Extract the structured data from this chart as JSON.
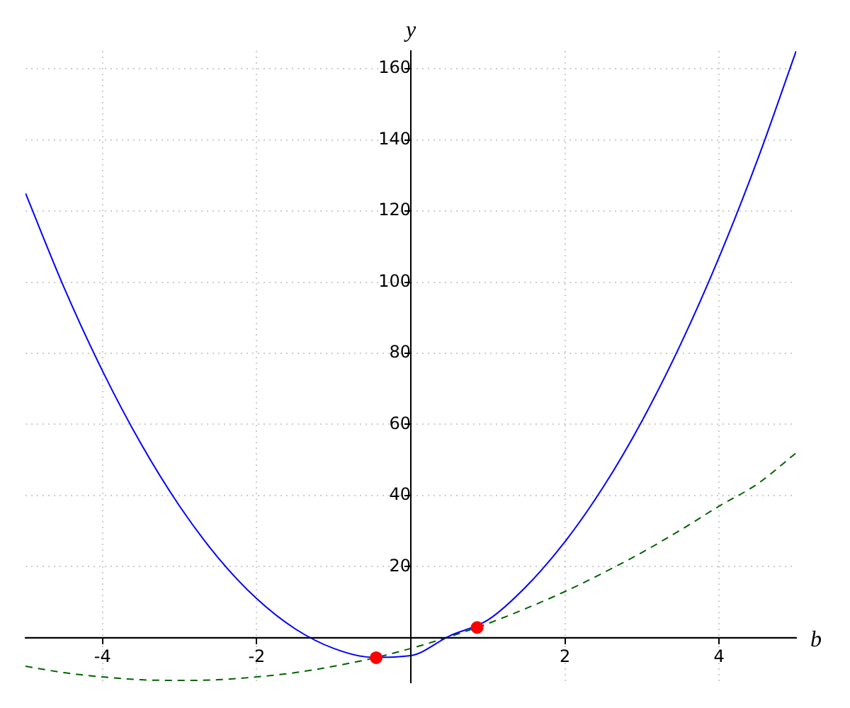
{
  "chart_data": {
    "type": "line",
    "xlabel": "b",
    "ylabel": "y",
    "xlim": [
      -5,
      5
    ],
    "ylim": [
      -12.5,
      165
    ],
    "xticks": [
      -4,
      -2,
      2,
      4
    ],
    "yticks": [
      20,
      40,
      60,
      80,
      100,
      120,
      140,
      160
    ],
    "grid": true,
    "legend": false,
    "marker": "none",
    "series": [
      {
        "color": "#0000ff",
        "line_style": "solid",
        "x": [
          -5,
          -4.5,
          -4,
          -3.5,
          -3,
          -2.5,
          -2,
          -1.5,
          -1,
          -0.5,
          0,
          0.5,
          1,
          1.5,
          2,
          2.5,
          3,
          3.5,
          4,
          4.5,
          5
        ],
        "values": [
          125,
          98.5,
          75,
          54.5,
          37,
          22.5,
          11,
          2.5,
          -3,
          -5.5,
          -5,
          0.5,
          5,
          14.5,
          27,
          42.5,
          61,
          82.5,
          107,
          134.5,
          165
        ]
      },
      {
        "color": "#006400",
        "line_style": "dashed",
        "x": [
          -5,
          -4.5,
          -4,
          -3.5,
          -3,
          -2.5,
          -2,
          -1.5,
          -1,
          -0.5,
          0,
          0.5,
          1,
          1.5,
          2,
          2.5,
          3,
          3.5,
          4,
          4.5,
          5
        ],
        "values": [
          -8,
          -9.8,
          -11,
          -11.8,
          -12,
          -11.8,
          -11,
          -9.8,
          -8,
          -5.8,
          -3,
          0.3,
          4,
          8.3,
          13,
          18.3,
          24,
          30.3,
          37,
          43.3,
          52
        ]
      },
      {
        "type": "scatter",
        "color": "#ff0000",
        "marker": "circle",
        "x": [
          -0.45,
          0.86
        ],
        "values": [
          -5.6,
          2.9
        ]
      }
    ]
  }
}
